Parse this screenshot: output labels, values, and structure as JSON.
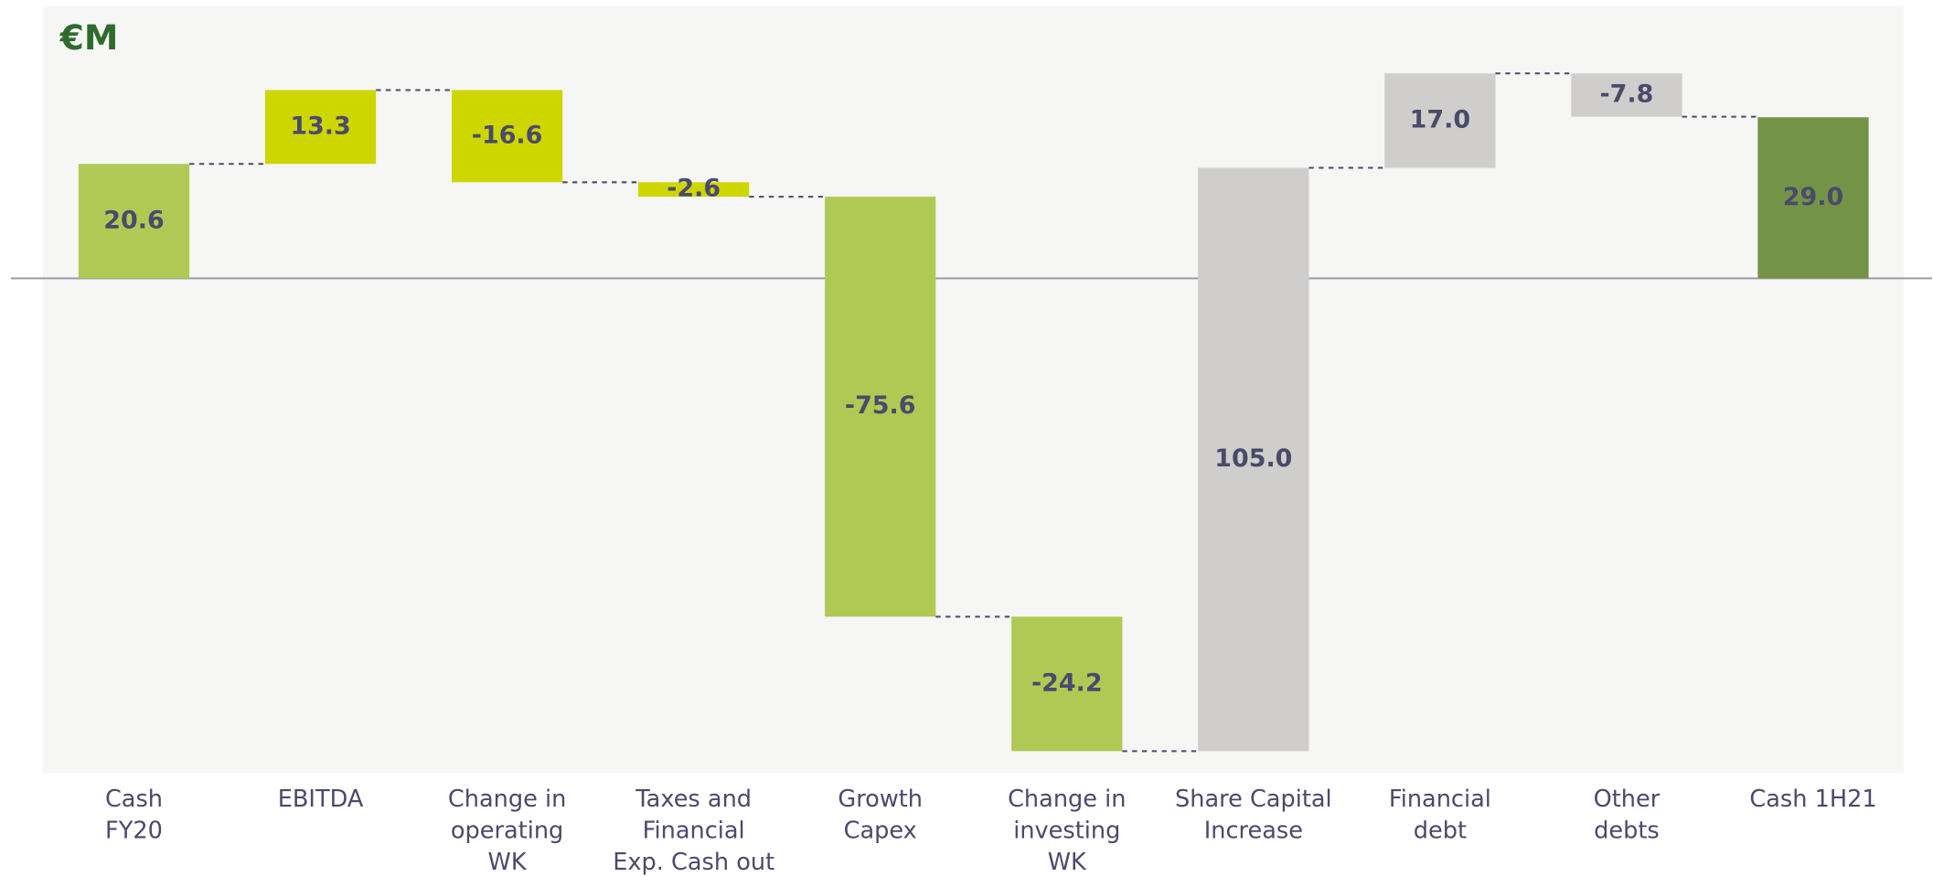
{
  "chart_data": {
    "type": "waterfall",
    "title": "€M",
    "categories": [
      "Cash\nFY20",
      "EBITDA",
      "Change in\noperating\nWK",
      "Taxes and\nFinancial\nExp. Cash out",
      "Growth\nCapex",
      "Change in\ninvesting\nWK",
      "Share Capital\nIncrease",
      "Financial\ndebt",
      "Other\ndebts",
      "Cash 1H21"
    ],
    "values": [
      20.6,
      13.3,
      -16.6,
      -2.6,
      -75.6,
      -24.2,
      105.0,
      17.0,
      -7.8,
      29.0
    ],
    "value_labels": [
      "20.6",
      "13.3",
      "-16.6",
      "-2.6",
      "-75.6",
      "-24.2",
      "105.0",
      "17.0",
      "-7.8",
      "29.0"
    ],
    "colors": [
      "#b0c955",
      "#cdd600",
      "#cdd600",
      "#cdd600",
      "#b0c955",
      "#b0c955",
      "#cfcecc",
      "#cfcecc",
      "#cfcecc",
      "#739447"
    ]
  }
}
